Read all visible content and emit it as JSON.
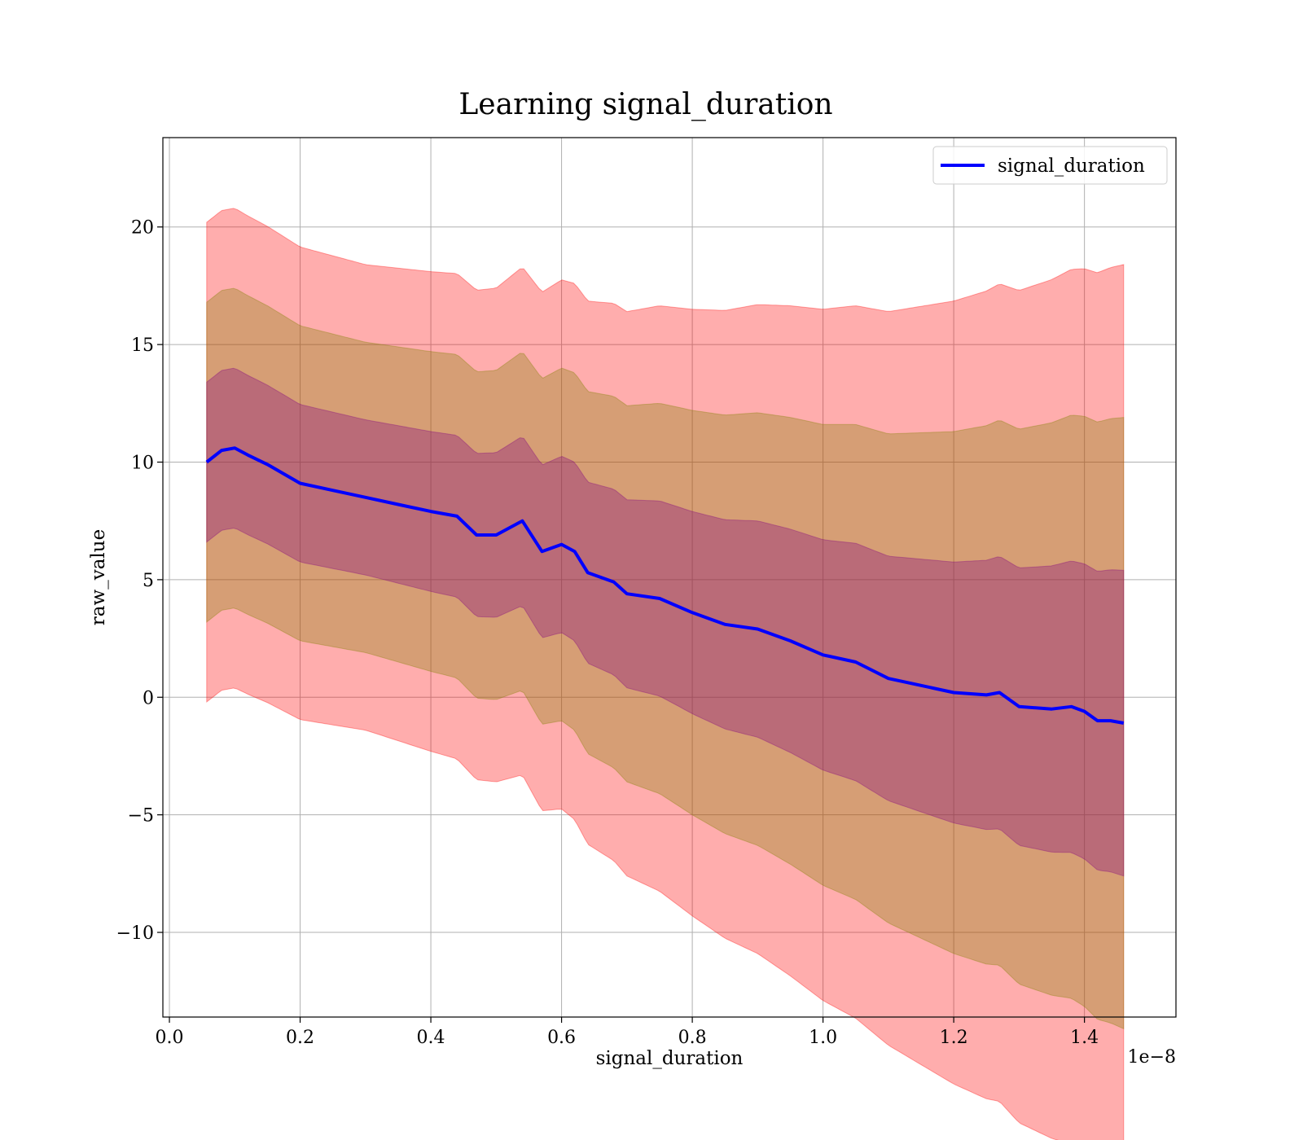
{
  "chart_data": {
    "type": "line",
    "title": "Learning signal_duration",
    "xlabel": "signal_duration",
    "ylabel": "raw_value",
    "x_offset_label": "1e−8",
    "xlim": [
      -0.01,
      1.54
    ],
    "ylim": [
      -13.6,
      23.8
    ],
    "x_ticks": [
      0.0,
      0.2,
      0.4,
      0.6,
      0.8,
      1.0,
      1.2,
      1.4
    ],
    "x_tick_labels": [
      "0.0",
      "0.2",
      "0.4",
      "0.6",
      "0.8",
      "1.0",
      "1.2",
      "1.4"
    ],
    "y_ticks": [
      -10,
      -5,
      0,
      5,
      10,
      15,
      20
    ],
    "y_tick_labels": [
      "−10",
      "−5",
      "0",
      "5",
      "10",
      "15",
      "20"
    ],
    "grid": true,
    "legend": {
      "position": "top-right",
      "entries": [
        "signal_duration"
      ]
    },
    "colors": {
      "line": "#0000ff",
      "band_outer": "#ff0000",
      "band_middle": "#808000",
      "band_inner": "#800080"
    },
    "series": [
      {
        "name": "signal_duration",
        "x": [
          0.057,
          0.08,
          0.1,
          0.12,
          0.15,
          0.2,
          0.25,
          0.3,
          0.35,
          0.4,
          0.44,
          0.47,
          0.5,
          0.54,
          0.57,
          0.6,
          0.62,
          0.64,
          0.68,
          0.7,
          0.75,
          0.8,
          0.85,
          0.9,
          0.95,
          1.0,
          1.05,
          1.1,
          1.15,
          1.2,
          1.25,
          1.27,
          1.3,
          1.35,
          1.38,
          1.4,
          1.42,
          1.44,
          1.46
        ],
        "y": [
          10.0,
          10.5,
          10.6,
          10.3,
          9.9,
          9.1,
          8.8,
          8.5,
          8.2,
          7.9,
          7.7,
          6.9,
          6.9,
          7.5,
          6.2,
          6.5,
          6.2,
          5.3,
          4.9,
          4.4,
          4.2,
          3.6,
          3.1,
          2.9,
          2.4,
          1.8,
          1.5,
          0.8,
          0.5,
          0.2,
          0.1,
          0.2,
          -0.4,
          -0.5,
          -0.4,
          -0.6,
          -1.0,
          -1.0,
          -1.1
        ]
      }
    ],
    "bands": [
      {
        "sigma": 3,
        "color": "band_outer",
        "alpha": 0.32
      },
      {
        "sigma": 2,
        "color": "band_middle",
        "alpha": 0.32
      },
      {
        "sigma": 1,
        "color": "band_inner",
        "alpha": 0.32
      }
    ],
    "band_halfwidth": {
      "x": [
        0.057,
        0.1,
        0.3,
        0.5,
        0.7,
        0.9,
        1.1,
        1.3,
        1.46
      ],
      "y": [
        3.4,
        3.4,
        3.3,
        3.5,
        4.0,
        4.6,
        5.2,
        5.9,
        6.5
      ]
    }
  }
}
